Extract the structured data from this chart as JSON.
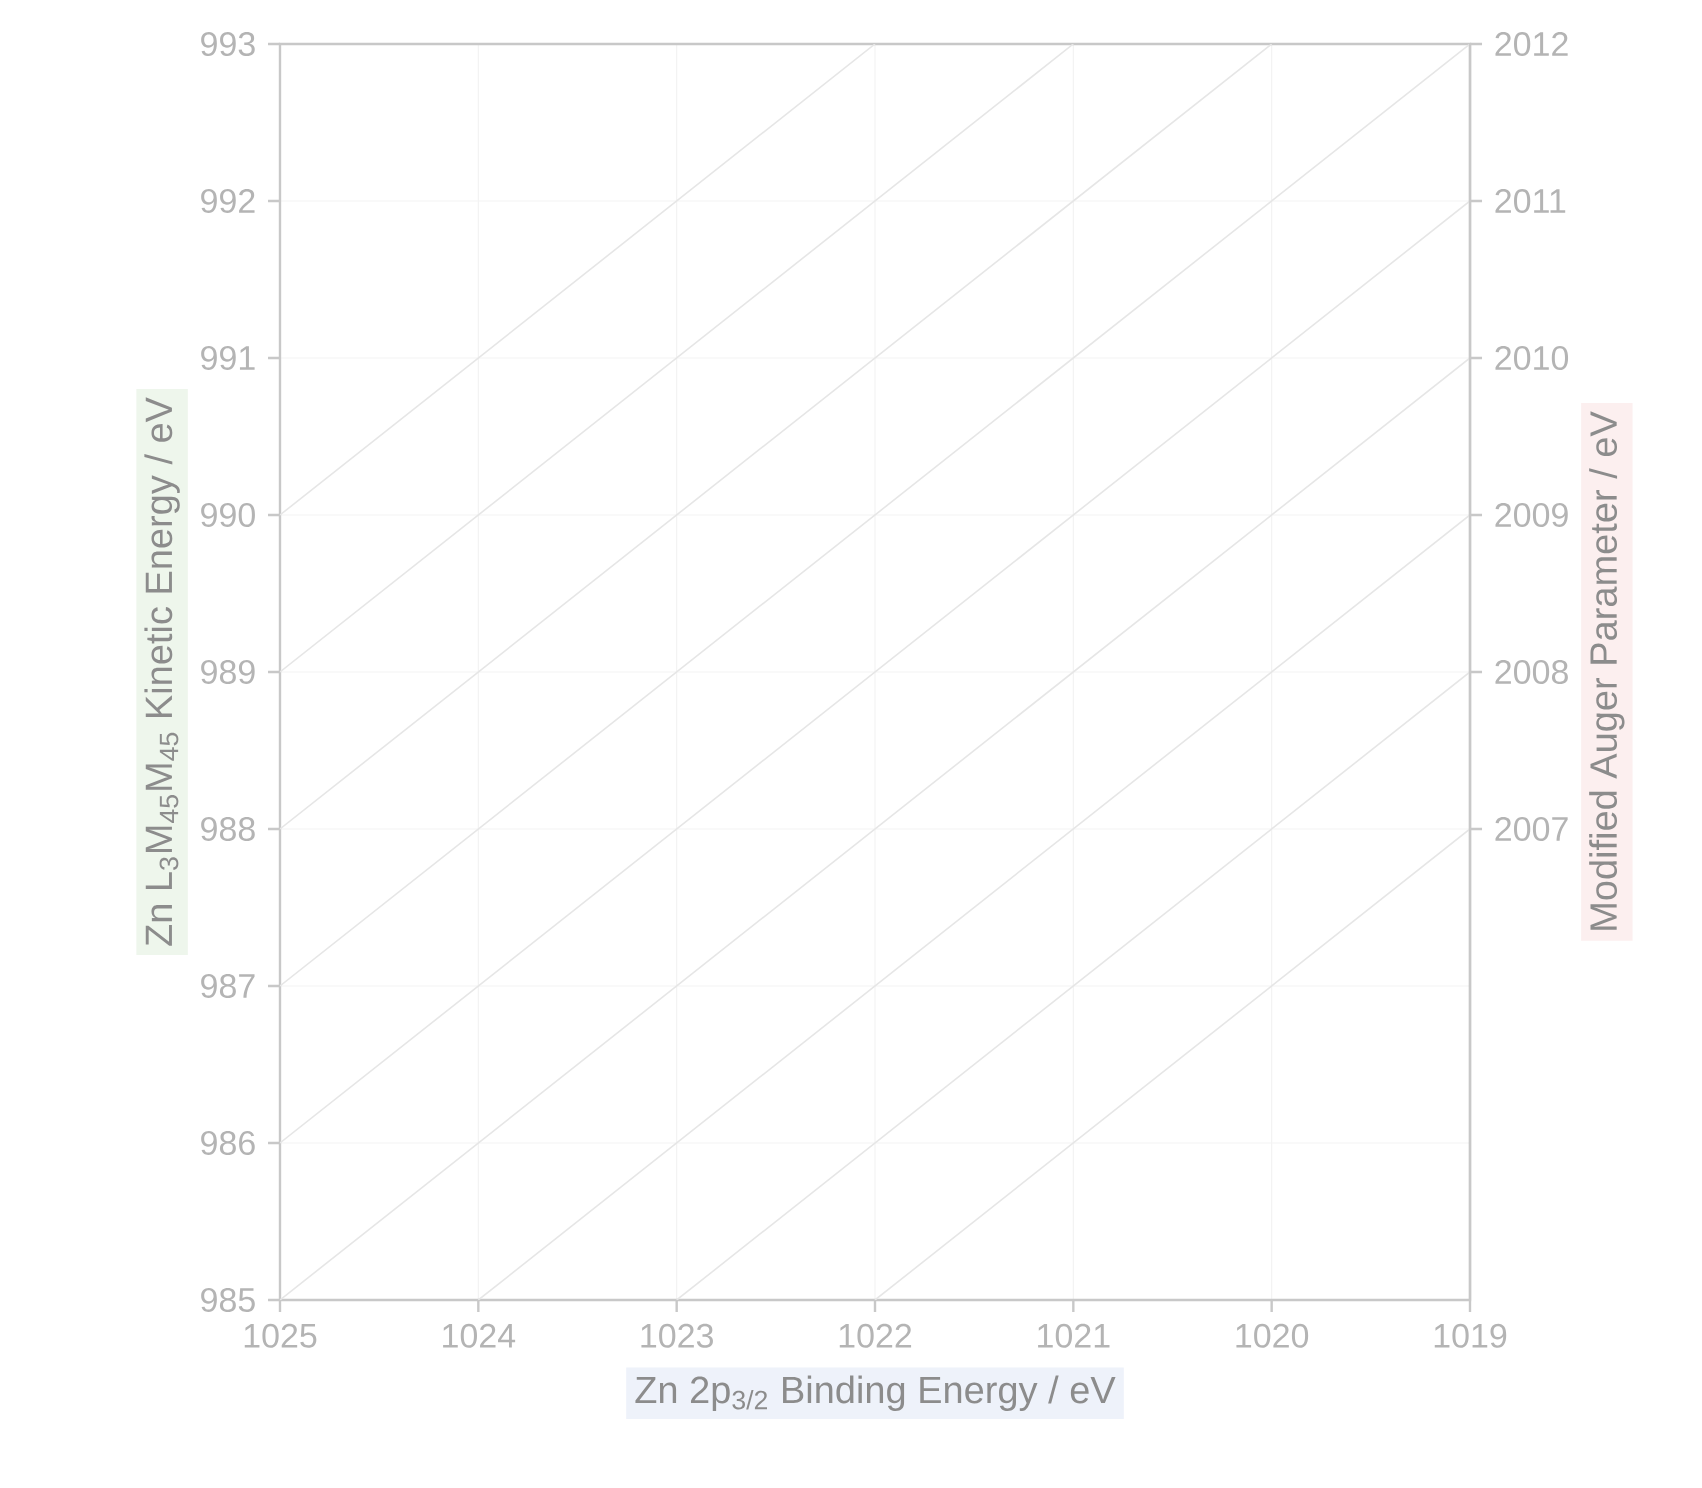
{
  "chart_data": {
    "type": "line",
    "xlabel": "Zn 2p$_{3/2}$ Binding Energy / eV",
    "ylabel": "Zn L$_{3}$M$_{45}$M$_{45}$ Kinetic Energy / eV",
    "y2label": "Modified Auger Parameter / eV",
    "xlim": [
      1025,
      1019
    ],
    "xticks": [
      1025,
      1024,
      1023,
      1022,
      1021,
      1020,
      1019
    ],
    "ylim": [
      985,
      993
    ],
    "yticks": [
      985,
      986,
      987,
      988,
      989,
      990,
      991,
      992,
      993
    ],
    "y2lim": [
      2004,
      2012
    ],
    "y2ticks": [
      2007,
      2008,
      2009,
      2010,
      2011,
      2012
    ],
    "grid": true,
    "line_style": "solid",
    "series": [
      {
        "color": "#e6e6e6",
        "x": [
          1022,
          1019
        ],
        "values": [
          985,
          988
        ]
      },
      {
        "color": "#e6e6e6",
        "x": [
          1023,
          1019
        ],
        "values": [
          985,
          989
        ]
      },
      {
        "color": "#e6e6e6",
        "x": [
          1024,
          1019
        ],
        "values": [
          985,
          990
        ]
      },
      {
        "color": "#e6e6e6",
        "x": [
          1025,
          1019
        ],
        "values": [
          985,
          991
        ]
      },
      {
        "color": "#e6e6e6",
        "x": [
          1025,
          1019
        ],
        "values": [
          986,
          992
        ]
      },
      {
        "color": "#e6e6e6",
        "x": [
          1025,
          1019
        ],
        "values": [
          987,
          993
        ]
      },
      {
        "color": "#e6e6e6",
        "x": [
          1025,
          1020
        ],
        "values": [
          988,
          993
        ]
      },
      {
        "color": "#e6e6e6",
        "x": [
          1025,
          1021
        ],
        "values": [
          989,
          993
        ]
      },
      {
        "color": "#e6e6e6",
        "x": [
          1025,
          1022
        ],
        "values": [
          990,
          993
        ]
      }
    ]
  }
}
